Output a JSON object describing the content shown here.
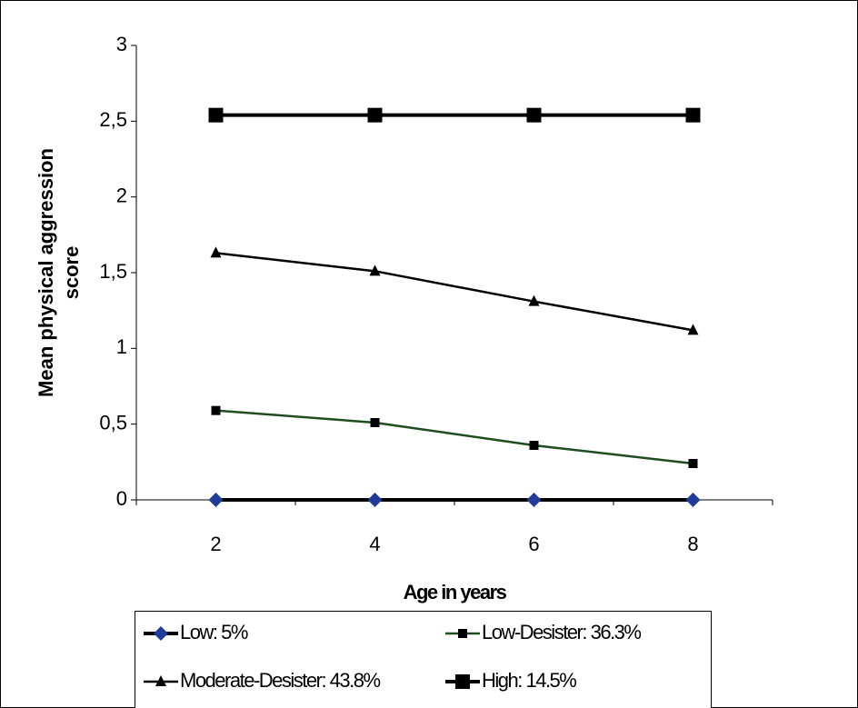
{
  "chart_data": {
    "type": "line",
    "y_label": [
      "Mean physical aggression",
      "score"
    ],
    "x_label": "Age in years",
    "categories": [
      "2",
      "4",
      "6",
      "8"
    ],
    "series": [
      {
        "name": "Low: 5%",
        "color": "#000000",
        "marker": "diamond",
        "marker_color": "#1f3c99",
        "values": [
          0,
          0,
          0,
          0
        ]
      },
      {
        "name": "Low-Desister: 36.3%",
        "color": "#1f4d1f",
        "marker": "square",
        "marker_color": "#000000",
        "values": [
          0.59,
          0.51,
          0.36,
          0.24
        ]
      },
      {
        "name": "Moderate-Desister: 43.8%",
        "color": "#000000",
        "marker": "triangle",
        "marker_color": "#000000",
        "values": [
          1.63,
          1.51,
          1.31,
          1.12
        ]
      },
      {
        "name": "High: 14.5%",
        "color": "#000000",
        "marker": "bigsquare",
        "marker_color": "#000000",
        "values": [
          2.54,
          2.54,
          2.54,
          2.54
        ]
      }
    ],
    "ylim": [
      0,
      3
    ],
    "yticks": [
      0,
      {
        "value": 0.5,
        "label": "0,5"
      },
      1,
      {
        "value": 1.5,
        "label": "1,5"
      },
      2,
      {
        "value": 2.5,
        "label": "2,5"
      },
      3
    ],
    "grid": false,
    "legend": "bottom"
  }
}
